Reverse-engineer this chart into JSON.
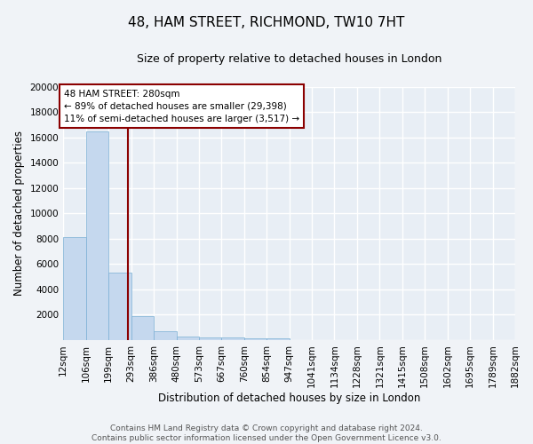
{
  "title": "48, HAM STREET, RICHMOND, TW10 7HT",
  "subtitle": "Size of property relative to detached houses in London",
  "xlabel": "Distribution of detached houses by size in London",
  "ylabel": "Number of detached properties",
  "bar_color": "#c5d8ee",
  "bar_edge_color": "#7aafd4",
  "background_color": "#e8eef5",
  "fig_background_color": "#f0f3f7",
  "grid_color": "#ffffff",
  "vline_color": "#8b0000",
  "vline_x": 280,
  "annotation_text": "48 HAM STREET: 280sqm\n← 89% of detached houses are smaller (29,398)\n11% of semi-detached houses are larger (3,517) →",
  "annotation_box_color": "#ffffff",
  "annotation_box_edge_color": "#8b0000",
  "footer_text": "Contains HM Land Registry data © Crown copyright and database right 2024.\nContains public sector information licensed under the Open Government Licence v3.0.",
  "bin_edges": [
    12,
    106,
    199,
    293,
    386,
    480,
    573,
    667,
    760,
    854,
    947,
    1041,
    1134,
    1228,
    1321,
    1415,
    1508,
    1602,
    1695,
    1789,
    1882
  ],
  "bar_heights": [
    8100,
    16500,
    5300,
    1850,
    700,
    300,
    225,
    200,
    150,
    125,
    0,
    0,
    0,
    0,
    0,
    0,
    0,
    0,
    0,
    0
  ],
  "ylim": [
    0,
    20000
  ],
  "yticks": [
    0,
    2000,
    4000,
    6000,
    8000,
    10000,
    12000,
    14000,
    16000,
    18000,
    20000
  ],
  "tick_label_fontsize": 7.5,
  "title_fontsize": 11,
  "subtitle_fontsize": 9,
  "xlabel_fontsize": 8.5,
  "ylabel_fontsize": 8.5,
  "footer_fontsize": 6.5
}
